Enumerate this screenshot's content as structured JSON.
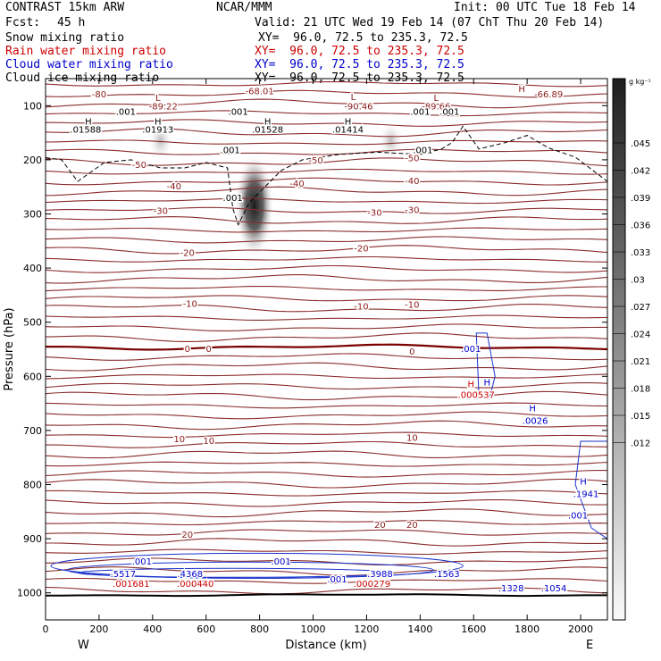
{
  "header": {
    "model": "CONTRAST 15km ARW",
    "org": "NCAR/MMM",
    "init": "Init: 00 UTC Tue 18 Feb 14",
    "fcst_label": "Fcst:",
    "fcst_value": "45 h",
    "valid": "Valid: 21 UTC Wed 19 Feb 14 (07 ChT Thu 20 Feb 14)"
  },
  "fields": [
    {
      "label": "Snow mixing ratio",
      "xy": "XY=  96.0, 72.5 to 235.3, 72.5",
      "color": "#000000"
    },
    {
      "label": "Rain water mixing ratio",
      "xy": "XY=  96.0, 72.5 to 235.3, 72.5",
      "color": "#cc0000"
    },
    {
      "label": "Cloud water mixing ratio",
      "xy": "XY=  96.0, 72.5 to 235.3, 72.5",
      "color": "#0000cc"
    },
    {
      "label": "Cloud ice mixing ratio",
      "xy": "XY=  96.0, 72.5 to 235.3, 72.5",
      "color": "#000000"
    }
  ],
  "colorbar": {
    "unit": "g kg⁻¹",
    "ticks": [
      ".045",
      ".042",
      ".039",
      ".036",
      ".033",
      ".03",
      ".027",
      ".024",
      ".021",
      ".018",
      ".015",
      ".012"
    ]
  },
  "chart_data": {
    "type": "cross-section",
    "xlabel": "Distance (km)",
    "ylabel": "Pressure (hPa)",
    "xlim": [
      0,
      2100
    ],
    "ylim": [
      1050,
      50
    ],
    "xticks": [
      "0",
      "200",
      "400",
      "600",
      "800",
      "1000",
      "1200",
      "1400",
      "1600",
      "1800",
      "2000"
    ],
    "xtick_values": [
      0,
      200,
      400,
      600,
      800,
      1000,
      1200,
      1400,
      1600,
      1800,
      2000
    ],
    "yticks": [
      "100",
      "200",
      "300",
      "400",
      "500",
      "600",
      "700",
      "800",
      "900",
      "1000"
    ],
    "ytick_values": [
      100,
      200,
      300,
      400,
      500,
      600,
      700,
      800,
      900,
      1000
    ],
    "west_label": "W",
    "east_label": "E",
    "temperature_isotherms": [
      {
        "label": "-80",
        "x": 200,
        "p": 80
      },
      {
        "label": "-50",
        "x": 350,
        "p": 210
      },
      {
        "label": "-50",
        "x": 1010,
        "p": 202
      },
      {
        "label": "-50",
        "x": 1370,
        "p": 198
      },
      {
        "label": "-40",
        "x": 480,
        "p": 250
      },
      {
        "label": "-40",
        "x": 940,
        "p": 245
      },
      {
        "label": "-40",
        "x": 1370,
        "p": 240
      },
      {
        "label": "-30",
        "x": 430,
        "p": 295
      },
      {
        "label": "-30",
        "x": 1230,
        "p": 298
      },
      {
        "label": "-30",
        "x": 1370,
        "p": 293
      },
      {
        "label": "-20",
        "x": 530,
        "p": 373
      },
      {
        "label": "-20",
        "x": 1180,
        "p": 364
      },
      {
        "label": "-10",
        "x": 540,
        "p": 467
      },
      {
        "label": "-10",
        "x": 1180,
        "p": 472
      },
      {
        "label": "-10",
        "x": 1370,
        "p": 468
      },
      {
        "label": "0",
        "x": 530,
        "p": 550
      },
      {
        "label": "0",
        "x": 610,
        "p": 550
      },
      {
        "label": "0",
        "x": 1370,
        "p": 555
      },
      {
        "label": "10",
        "x": 500,
        "p": 717
      },
      {
        "label": "10",
        "x": 610,
        "p": 720
      },
      {
        "label": "10",
        "x": 1370,
        "p": 714
      },
      {
        "label": "20",
        "x": 530,
        "p": 893
      },
      {
        "label": "20",
        "x": 1250,
        "p": 875
      },
      {
        "label": "20",
        "x": 1370,
        "p": 875
      }
    ],
    "maxima_labels": [
      {
        "text": "L",
        "x": 420,
        "p": 86,
        "color": "#8b1a1a"
      },
      {
        "text": "L",
        "x": 1150,
        "p": 85,
        "color": "#8b1a1a"
      },
      {
        "text": "-89.22",
        "x": 440,
        "p": 102,
        "color": "#8b1a1a"
      },
      {
        "text": "-90.46",
        "x": 1170,
        "p": 102,
        "color": "#8b1a1a"
      },
      {
        "text": "-68.01",
        "x": 800,
        "p": 74,
        "color": "#8b1a1a"
      },
      {
        "text": "-89.66",
        "x": 1460,
        "p": 102,
        "color": "#8b1a1a"
      },
      {
        "text": "-66.89",
        "x": 1880,
        "p": 80,
        "color": "#8b1a1a"
      },
      {
        "text": "L",
        "x": 1460,
        "p": 86,
        "color": "#8b1a1a"
      },
      {
        "text": "H",
        "x": 1780,
        "p": 70,
        "color": "#8b1a1a"
      },
      {
        "text": "H",
        "x": 1590,
        "p": 615,
        "color": "#cc0000"
      },
      {
        "text": ".000537",
        "x": 1610,
        "p": 635,
        "color": "#cc0000"
      },
      {
        "text": ".001681",
        "x": 320,
        "p": 984,
        "color": "#cc0000"
      },
      {
        "text": ".000440",
        "x": 560,
        "p": 984,
        "color": "#cc0000"
      },
      {
        "text": ".000279",
        "x": 1220,
        "p": 984,
        "color": "#cc0000"
      }
    ],
    "cloud_water_labels": [
      {
        "text": ".001",
        "x": 1590,
        "p": 550
      },
      {
        "text": "H",
        "x": 1650,
        "p": 612
      },
      {
        "text": ".0026",
        "x": 1830,
        "p": 683
      },
      {
        "text": "H",
        "x": 1820,
        "p": 660
      },
      {
        "text": "H",
        "x": 2010,
        "p": 795
      },
      {
        "text": ".1941",
        "x": 2020,
        "p": 818
      },
      {
        "text": ".001",
        "x": 1990,
        "p": 858
      },
      {
        "text": ".5517",
        "x": 290,
        "p": 966
      },
      {
        "text": ".4368",
        "x": 540,
        "p": 966
      },
      {
        "text": ".3988",
        "x": 1250,
        "p": 966
      },
      {
        "text": ".1563",
        "x": 1500,
        "p": 966
      },
      {
        "text": ".1328",
        "x": 1740,
        "p": 992
      },
      {
        "text": ".1054",
        "x": 1900,
        "p": 992
      },
      {
        "text": ".001",
        "x": 360,
        "p": 943
      },
      {
        "text": ".001",
        "x": 880,
        "p": 943
      },
      {
        "text": ".001",
        "x": 1090,
        "p": 976
      }
    ],
    "snow_labels": [
      {
        "text": ".001",
        "x": 300,
        "p": 112
      },
      {
        "text": ".001",
        "x": 720,
        "p": 112
      },
      {
        "text": ".001",
        "x": 1400,
        "p": 112
      },
      {
        "text": ".001",
        "x": 1510,
        "p": 112
      },
      {
        "text": ".01588",
        "x": 150,
        "p": 145
      },
      {
        "text": ".01913",
        "x": 420,
        "p": 145
      },
      {
        "text": ".01528",
        "x": 830,
        "p": 145
      },
      {
        "text": ".01414",
        "x": 1130,
        "p": 145
      },
      {
        "text": ".001",
        "x": 690,
        "p": 183
      },
      {
        "text": ".001",
        "x": 1410,
        "p": 183
      },
      {
        "text": ".001",
        "x": 700,
        "p": 271
      }
    ],
    "snow_maxima_markers": [
      {
        "text": "H",
        "x": 160,
        "p": 130
      },
      {
        "text": "H",
        "x": 420,
        "p": 130
      },
      {
        "text": "H",
        "x": 830,
        "p": 130
      },
      {
        "text": "H",
        "x": 1130,
        "p": 130
      }
    ],
    "snow_shading": [
      {
        "x": 780,
        "p": 285,
        "max": 0.045
      },
      {
        "x": 430,
        "p": 165,
        "max": 0.02
      },
      {
        "x": 1290,
        "p": 165,
        "max": 0.02
      }
    ]
  }
}
